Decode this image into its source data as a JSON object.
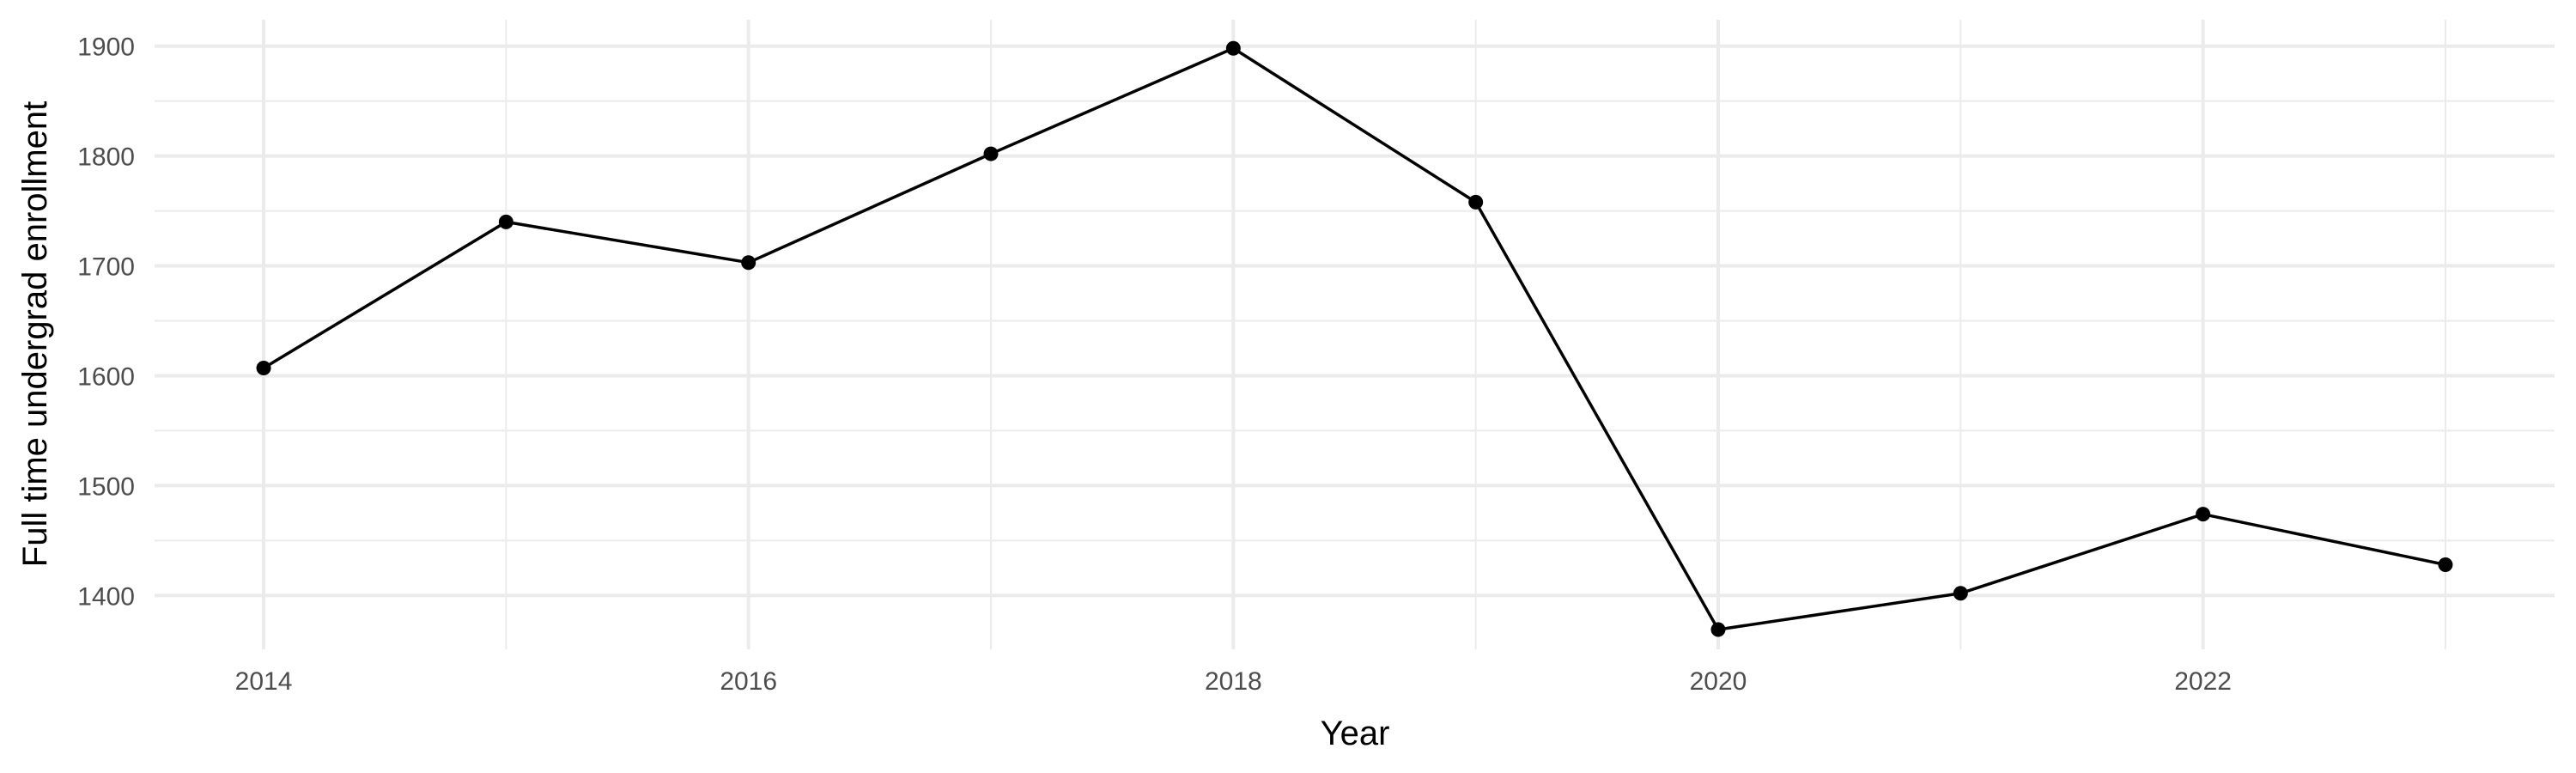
{
  "chart_data": {
    "type": "line",
    "title": "",
    "xlabel": "Year",
    "ylabel": "Full time undergrad enrollment",
    "x": [
      2014,
      2015,
      2016,
      2017,
      2018,
      2019,
      2020,
      2021,
      2022,
      2023
    ],
    "series": [
      {
        "values": [
          1607,
          1740,
          1703,
          1802,
          1898,
          1758,
          1369,
          1402,
          1474,
          1428
        ],
        "color": "#000000",
        "markers": true
      }
    ],
    "xlim": [
      2013.55,
      2023.45
    ],
    "ylim": [
      1351,
      1924
    ],
    "x_ticks": [
      2014,
      2016,
      2018,
      2020,
      2022
    ],
    "x_tick_labels": [
      "2014",
      "2016",
      "2018",
      "2020",
      "2022"
    ],
    "y_ticks": [
      1400,
      1500,
      1600,
      1700,
      1800,
      1900
    ],
    "y_tick_labels": [
      "1400",
      "1500",
      "1600",
      "1700",
      "1800",
      "1900"
    ],
    "grid": true,
    "legend": "none",
    "colors": {
      "grid": "#ebebeb",
      "tick_text": "#4d4d4d",
      "line": "#000000"
    }
  }
}
